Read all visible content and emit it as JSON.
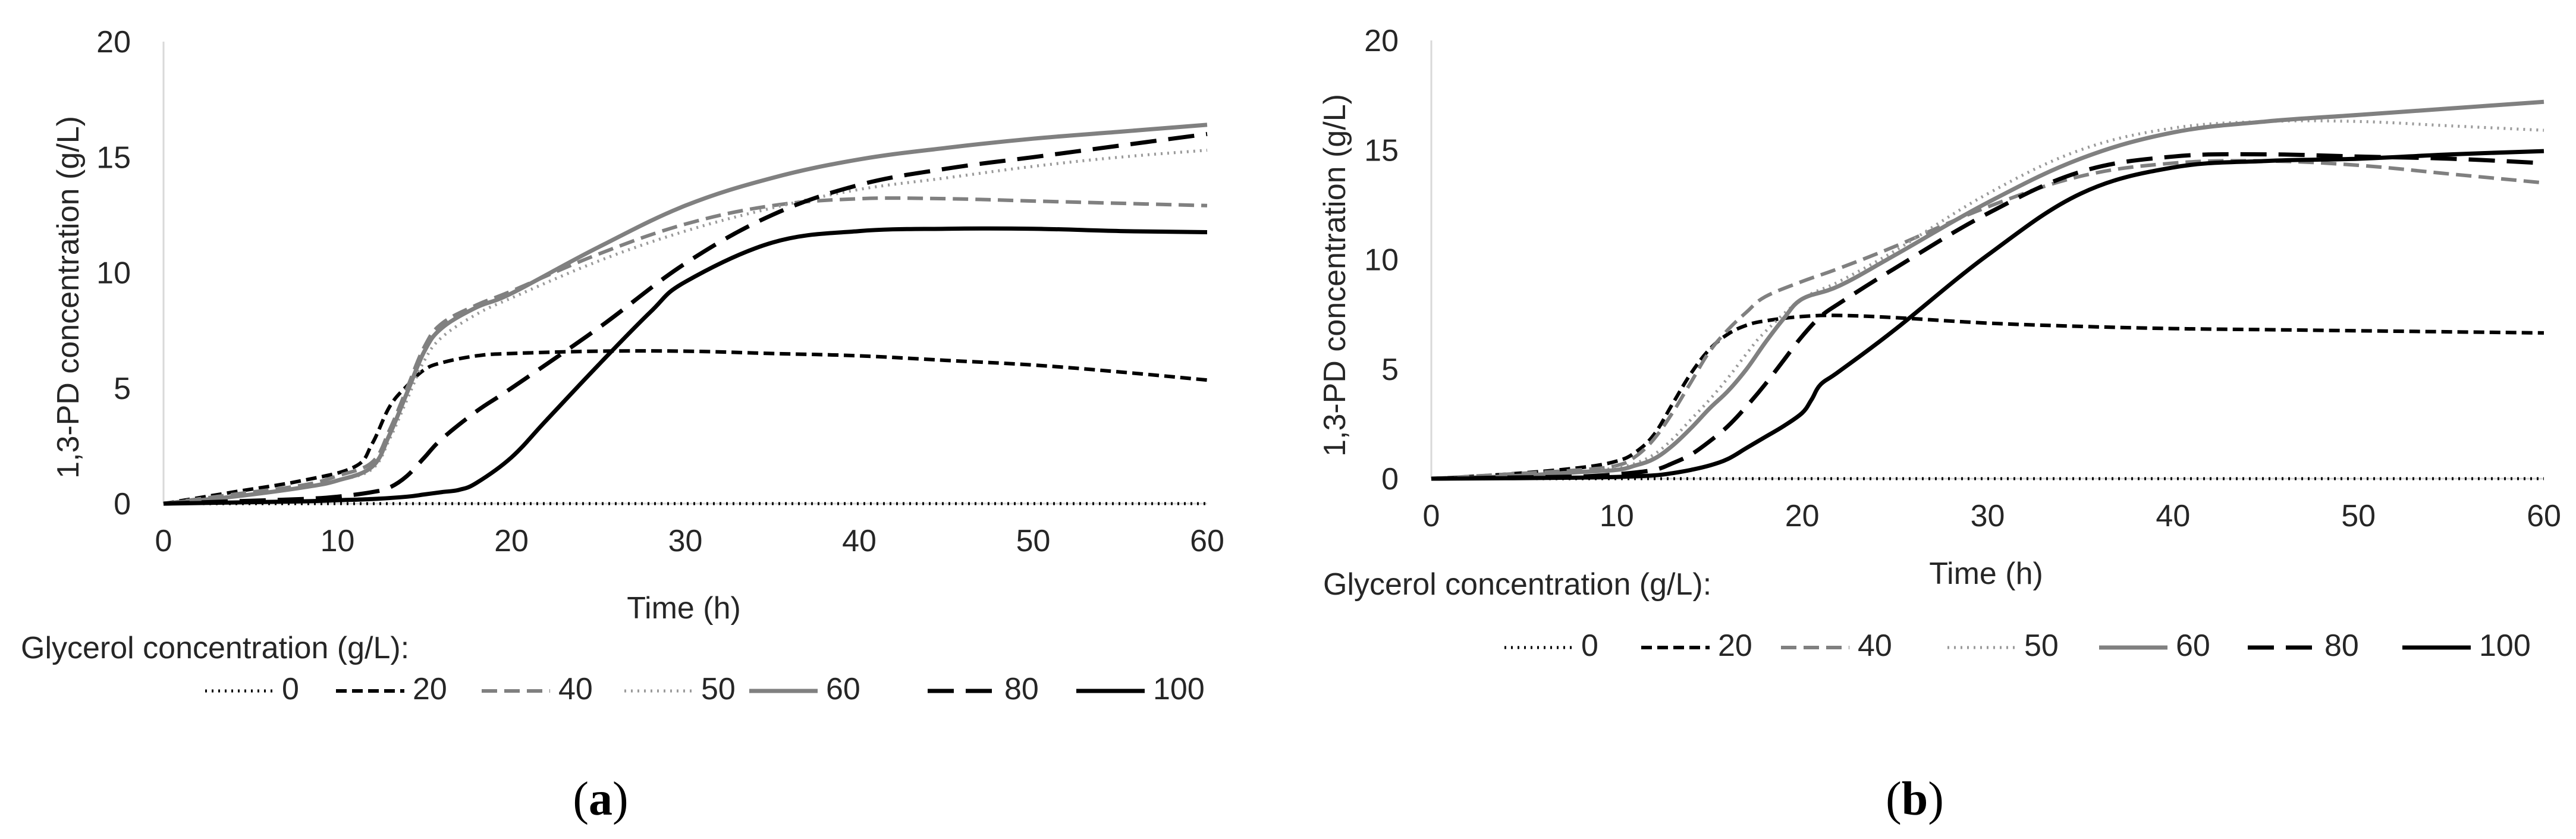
{
  "figure": {
    "panels": [
      "(a)",
      "(b)"
    ]
  },
  "style": {
    "colors": {
      "black": "#000000",
      "gray": "#808080",
      "lightgray": "#9a9a9a",
      "axis": "#d9d9d9",
      "text": "#262626"
    }
  },
  "chart_data": [
    {
      "type": "line",
      "panel": "(a)",
      "caption_letter": "a",
      "xlabel": "Time (h)",
      "ylabel": "1,3-PD concentration (g/L)",
      "xlim": [
        0,
        60
      ],
      "ylim": [
        0,
        20
      ],
      "xticks": [
        0,
        10,
        20,
        30,
        40,
        50,
        60
      ],
      "yticks": [
        0,
        5,
        10,
        15,
        20
      ],
      "legend_title": "Glycerol concentration (g/L):",
      "legend_position": "bottom",
      "series": [
        {
          "name": "0",
          "style": "dotted",
          "color": "#000000",
          "x": [
            0,
            60
          ],
          "y": [
            0,
            0
          ]
        },
        {
          "name": "20",
          "style": "short-dash",
          "color": "#000000",
          "x": [
            0,
            4,
            8,
            11,
            12,
            13,
            14,
            15,
            16,
            18,
            20,
            25,
            30,
            35,
            40,
            45,
            50,
            55,
            60
          ],
          "y": [
            0,
            0.5,
            1.0,
            1.6,
            2.6,
            4.2,
            5.1,
            5.8,
            6.1,
            6.4,
            6.5,
            6.6,
            6.6,
            6.5,
            6.4,
            6.2,
            6.0,
            5.7,
            5.35
          ]
        },
        {
          "name": "40",
          "style": "dash",
          "color": "#808080",
          "x": [
            0,
            4,
            8,
            10,
            12,
            13,
            14,
            15,
            16,
            18,
            20,
            25,
            30,
            35,
            40,
            45,
            50,
            55,
            60
          ],
          "y": [
            0,
            0.4,
            0.8,
            1.2,
            1.8,
            3.2,
            5.0,
            6.8,
            7.8,
            8.6,
            9.2,
            10.8,
            12.1,
            12.9,
            13.2,
            13.2,
            13.1,
            13.0,
            12.9
          ]
        },
        {
          "name": "50",
          "style": "dotted",
          "color": "#9a9a9a",
          "x": [
            0,
            4,
            8,
            10,
            12,
            13,
            14,
            15,
            16,
            18,
            20,
            25,
            30,
            35,
            40,
            45,
            50,
            55,
            60
          ],
          "y": [
            0,
            0.3,
            0.7,
            1.0,
            1.5,
            2.8,
            4.5,
            6.2,
            7.2,
            8.2,
            8.9,
            10.5,
            11.8,
            12.8,
            13.6,
            14.1,
            14.6,
            15.0,
            15.3
          ]
        },
        {
          "name": "60",
          "style": "solid",
          "color": "#808080",
          "x": [
            0,
            4,
            8,
            10,
            12,
            13,
            14,
            15,
            16,
            18,
            20,
            25,
            30,
            35,
            40,
            45,
            50,
            55,
            60
          ],
          "y": [
            0,
            0.3,
            0.7,
            1.0,
            1.6,
            3.0,
            4.8,
            6.6,
            7.6,
            8.5,
            9.1,
            11.1,
            12.9,
            14.1,
            14.9,
            15.4,
            15.8,
            16.1,
            16.4
          ]
        },
        {
          "name": "80",
          "style": "long-dash",
          "color": "#000000",
          "x": [
            0,
            4,
            8,
            10,
            12,
            13,
            14,
            15,
            16,
            18,
            20,
            25,
            30,
            35,
            40,
            45,
            50,
            55,
            60
          ],
          "y": [
            0,
            0.1,
            0.2,
            0.3,
            0.5,
            0.7,
            1.2,
            2.0,
            2.8,
            4.0,
            5.0,
            7.6,
            10.4,
            12.5,
            13.8,
            14.5,
            15.0,
            15.5,
            16.0
          ]
        },
        {
          "name": "100",
          "style": "solid",
          "color": "#000000",
          "x": [
            0,
            4,
            8,
            10,
            12,
            14,
            15,
            16,
            17,
            18,
            20,
            22,
            25,
            28,
            30,
            35,
            40,
            45,
            50,
            55,
            60
          ],
          "y": [
            0,
            0.05,
            0.1,
            0.15,
            0.2,
            0.3,
            0.4,
            0.5,
            0.6,
            0.9,
            2.0,
            3.6,
            6.0,
            8.3,
            9.6,
            11.3,
            11.8,
            11.9,
            11.9,
            11.8,
            11.75
          ]
        }
      ]
    },
    {
      "type": "line",
      "panel": "(b)",
      "caption_letter": "b",
      "xlabel": "Time (h)",
      "ylabel": "1,3-PD concentration (g/L)",
      "xlim": [
        0,
        60
      ],
      "ylim": [
        0,
        20
      ],
      "xticks": [
        0,
        10,
        20,
        30,
        40,
        50,
        60
      ],
      "yticks": [
        0,
        5,
        10,
        15,
        20
      ],
      "legend_title": "Glycerol concentration (g/L):",
      "legend_position": "bottom",
      "series": [
        {
          "name": "0",
          "style": "dotted",
          "color": "#000000",
          "x": [
            0,
            60
          ],
          "y": [
            0,
            0
          ]
        },
        {
          "name": "20",
          "style": "short-dash",
          "color": "#000000",
          "x": [
            0,
            4,
            8,
            10,
            11,
            12,
            13,
            14,
            15,
            16,
            17,
            18,
            20,
            22,
            25,
            30,
            35,
            40,
            45,
            50,
            55,
            60
          ],
          "y": [
            0,
            0.2,
            0.5,
            0.8,
            1.2,
            2.0,
            3.4,
            4.8,
            5.9,
            6.6,
            7.0,
            7.2,
            7.4,
            7.45,
            7.35,
            7.1,
            6.95,
            6.85,
            6.8,
            6.75,
            6.7,
            6.65
          ]
        },
        {
          "name": "40",
          "style": "dash",
          "color": "#808080",
          "x": [
            0,
            4,
            8,
            10,
            11,
            12,
            13,
            14,
            15,
            16,
            17,
            18,
            20,
            22,
            25,
            30,
            35,
            40,
            45,
            50,
            55,
            60
          ],
          "y": [
            0,
            0.2,
            0.4,
            0.6,
            1.0,
            1.8,
            3.0,
            4.4,
            5.8,
            6.8,
            7.6,
            8.3,
            9.0,
            9.6,
            10.6,
            12.4,
            13.8,
            14.4,
            14.5,
            14.3,
            13.9,
            13.5
          ]
        },
        {
          "name": "50",
          "style": "dotted",
          "color": "#9a9a9a",
          "x": [
            0,
            4,
            8,
            10,
            11,
            12,
            13,
            14,
            15,
            16,
            17,
            18,
            20,
            22,
            25,
            30,
            35,
            40,
            45,
            50,
            55,
            60
          ],
          "y": [
            0,
            0.1,
            0.3,
            0.5,
            0.7,
            1.1,
            1.8,
            2.7,
            3.6,
            4.6,
            5.7,
            6.7,
            8.2,
            9.0,
            10.4,
            13.0,
            15.0,
            16.0,
            16.3,
            16.3,
            16.1,
            15.9
          ]
        },
        {
          "name": "60",
          "style": "solid",
          "color": "#808080",
          "x": [
            0,
            4,
            8,
            10,
            11,
            12,
            13,
            14,
            15,
            16,
            17,
            18,
            19,
            20,
            22,
            25,
            30,
            35,
            40,
            45,
            50,
            55,
            60
          ],
          "y": [
            0,
            0.1,
            0.3,
            0.4,
            0.6,
            0.9,
            1.5,
            2.3,
            3.2,
            4.0,
            5.0,
            6.2,
            7.3,
            8.2,
            8.8,
            10.2,
            12.6,
            14.6,
            15.8,
            16.3,
            16.6,
            16.9,
            17.2
          ]
        },
        {
          "name": "80",
          "style": "long-dash",
          "color": "#000000",
          "x": [
            0,
            4,
            8,
            10,
            12,
            13,
            14,
            15,
            16,
            17,
            18,
            19,
            20,
            21,
            22,
            25,
            30,
            35,
            40,
            45,
            50,
            55,
            60
          ],
          "y": [
            0,
            0.05,
            0.1,
            0.2,
            0.4,
            0.7,
            1.1,
            1.7,
            2.4,
            3.3,
            4.3,
            5.4,
            6.5,
            7.4,
            8.0,
            9.6,
            12.1,
            14.0,
            14.7,
            14.8,
            14.7,
            14.6,
            14.4
          ]
        },
        {
          "name": "100",
          "style": "solid",
          "color": "#000000",
          "x": [
            0,
            4,
            8,
            10,
            12,
            13,
            14,
            15,
            16,
            17,
            18,
            19,
            20,
            20.5,
            21,
            22,
            25,
            30,
            35,
            40,
            45,
            50,
            55,
            60
          ],
          "y": [
            0,
            0.02,
            0.05,
            0.08,
            0.15,
            0.25,
            0.4,
            0.6,
            0.9,
            1.4,
            1.9,
            2.4,
            3.0,
            3.6,
            4.3,
            4.9,
            6.8,
            10.2,
            13.0,
            14.2,
            14.5,
            14.6,
            14.8,
            14.95
          ]
        }
      ]
    }
  ]
}
